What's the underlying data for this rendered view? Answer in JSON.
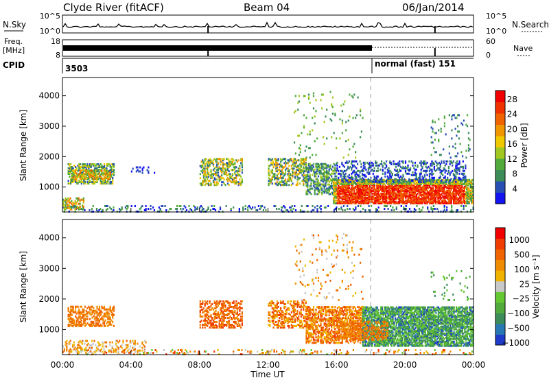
{
  "header": {
    "station": "Clyde River (fitACF)",
    "beam": "Beam 04",
    "date": "06/Jan/2014"
  },
  "noise_panel": {
    "left_label": "N.Sky",
    "right_label": "N.Search",
    "left_ticks": [
      "10^5",
      "10^0"
    ],
    "right_ticks": [
      "10^5",
      "10^0"
    ]
  },
  "freq_panel": {
    "left_label_top": "Freq.",
    "left_label_bottom": "[MHz]",
    "left_ticks": [
      "18",
      "8"
    ],
    "right_label": "Nave",
    "right_ticks": [
      "60",
      "0"
    ]
  },
  "cpid_panel": {
    "label": "CPID",
    "segments": [
      {
        "text": "3503",
        "start": "00:00"
      },
      {
        "text": "normal (fast) 151",
        "start": "18:00"
      }
    ]
  },
  "chart_data": [
    {
      "type": "heatmap",
      "title": "",
      "xlabel": "Time UT",
      "ylabel": "Slant Range [km]",
      "x_ticks": [
        "00:00",
        "04:00",
        "08:00",
        "12:00",
        "16:00",
        "20:00",
        "00:00"
      ],
      "xlim_hours": [
        0,
        24
      ],
      "y_ticks": [
        1000,
        2000,
        3000,
        4000
      ],
      "ylim": [
        180,
        4600
      ],
      "colorbar_label": "Power [dB]",
      "colorbar_ticks": [
        "4",
        "8",
        "12",
        "16",
        "20",
        "24",
        "28"
      ],
      "colorbar_range": [
        0,
        30
      ],
      "colorbar_colors": [
        "#1414f0",
        "#2850b4",
        "#3c8c5a",
        "#50aa3c",
        "#a0c81e",
        "#f0c800",
        "#f09600",
        "#f06400",
        "#f03200",
        "#f00000"
      ]
    },
    {
      "type": "heatmap",
      "title": "",
      "xlabel": "Time UT",
      "ylabel": "Slant Range [km]",
      "x_ticks": [
        "00:00",
        "04:00",
        "08:00",
        "12:00",
        "16:00",
        "20:00",
        "00:00"
      ],
      "xlim_hours": [
        0,
        24
      ],
      "y_ticks": [
        1000,
        2000,
        3000,
        4000
      ],
      "ylim": [
        180,
        4600
      ],
      "colorbar_label": "Velocity [m s⁻¹]",
      "colorbar_ticks": [
        "1000",
        "500",
        "100",
        "25",
        "−25",
        "−100",
        "−500",
        "−1000"
      ],
      "colorbar_colors": [
        "#1e3cc8",
        "#2878b4",
        "#3c8c5a",
        "#50aa3c",
        "#64c832",
        "#c8c8c8",
        "#f0b400",
        "#f08c00",
        "#f06400",
        "#f03c00",
        "#f00000"
      ]
    }
  ]
}
